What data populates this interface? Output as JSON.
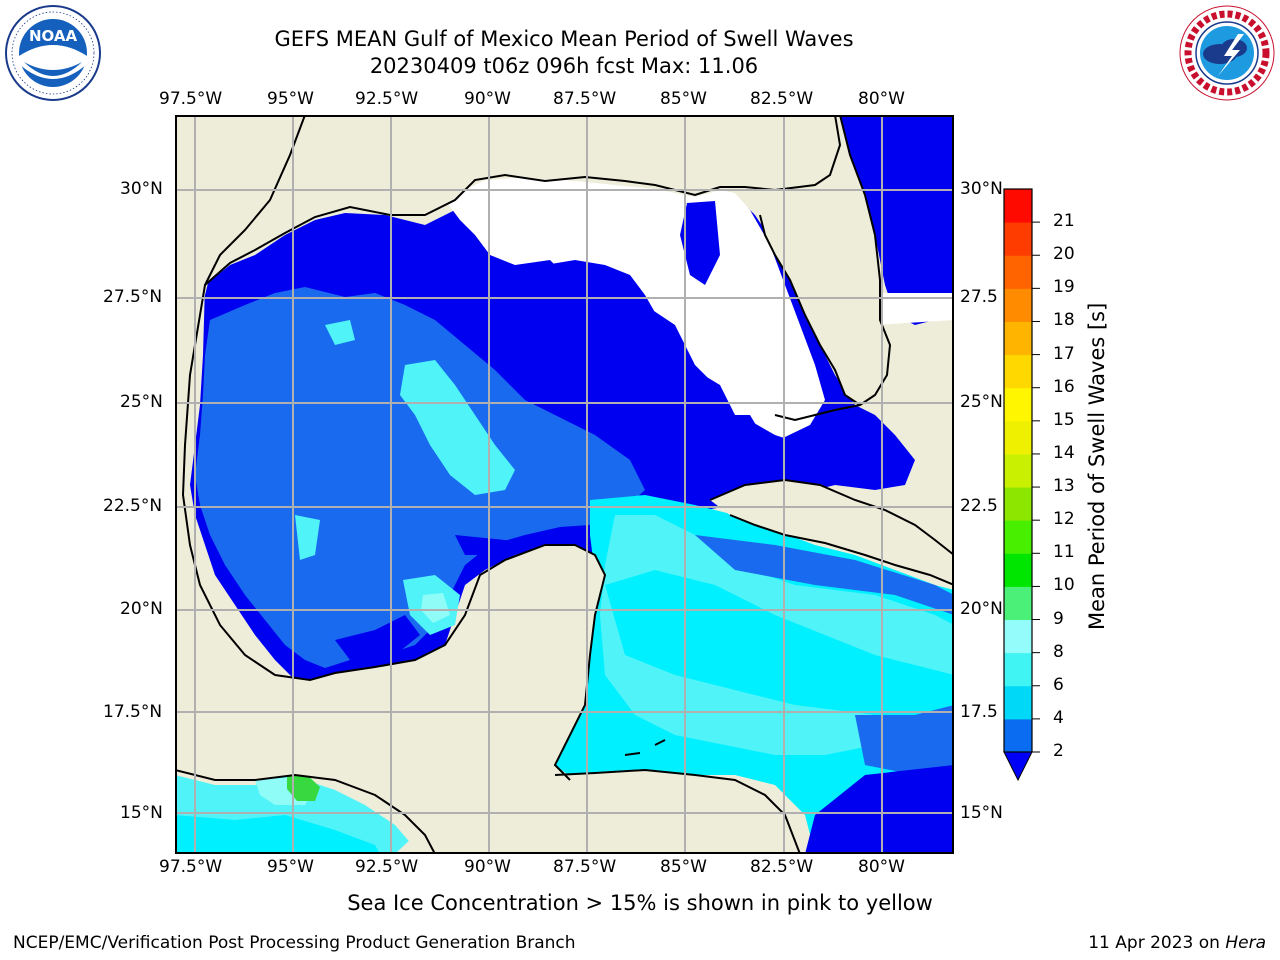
{
  "title_line1": "GEFS MEAN Gulf of Mexico Mean Period of Swell Waves",
  "title_line2": "20230409 t06z 096h fcst   Max: 11.06",
  "logos": {
    "left": {
      "name": "NOAA",
      "ring_text": "NATIONAL OCEANIC AND ATMOSPHERIC ADMINISTRATION · U.S. DEPARTMENT OF COMMERCE"
    },
    "right": {
      "name": "NATIONAL WEATHER SERVICE"
    }
  },
  "lon_labels": [
    "97.5°W",
    "95°W",
    "92.5°W",
    "90°W",
    "87.5°W",
    "85°W",
    "82.5°W",
    "80°W"
  ],
  "lat_labels_left": [
    "30°N",
    "27.5°N",
    "25°N",
    "22.5°N",
    "20°N",
    "17.5°N",
    "15°N"
  ],
  "lat_labels_right": [
    "30°N",
    "27.5",
    "25°N",
    "22.5",
    "20°N",
    "17.5",
    "15°N"
  ],
  "colorbar": {
    "title": "Mean Period of Swell Waves [s]",
    "ticks": [
      "2",
      "4",
      "6",
      "8",
      "9",
      "10",
      "11",
      "12",
      "13",
      "14",
      "15",
      "16",
      "17",
      "18",
      "19",
      "20",
      "21"
    ],
    "colors": [
      "#0a6cf0",
      "#00d8f8",
      "#40f4f4",
      "#94fcfa",
      "#4af078",
      "#00e600",
      "#48f000",
      "#8ce600",
      "#c8f000",
      "#eef000",
      "#fff600",
      "#ffd800",
      "#ffb400",
      "#ff8c00",
      "#ff6400",
      "#ff3c00",
      "#ff0a00"
    ],
    "extend_color": "#0000f8"
  },
  "map_colors": {
    "land": "#eeedda",
    "water_dark": "#0000f0",
    "water_mid": "#1a6af0",
    "water_cyan": "#00f0ff",
    "water_light": "#50f4f8",
    "water_pale": "#90fcf8",
    "green": "#38d840"
  },
  "caption": "Sea Ice Concentration > 15% is shown in pink to yellow",
  "footer_left": "NCEP/EMC/Verification Post Processing Product Generation Branch",
  "footer_right_date": "11 Apr 2023 on ",
  "footer_right_host": "Hera"
}
